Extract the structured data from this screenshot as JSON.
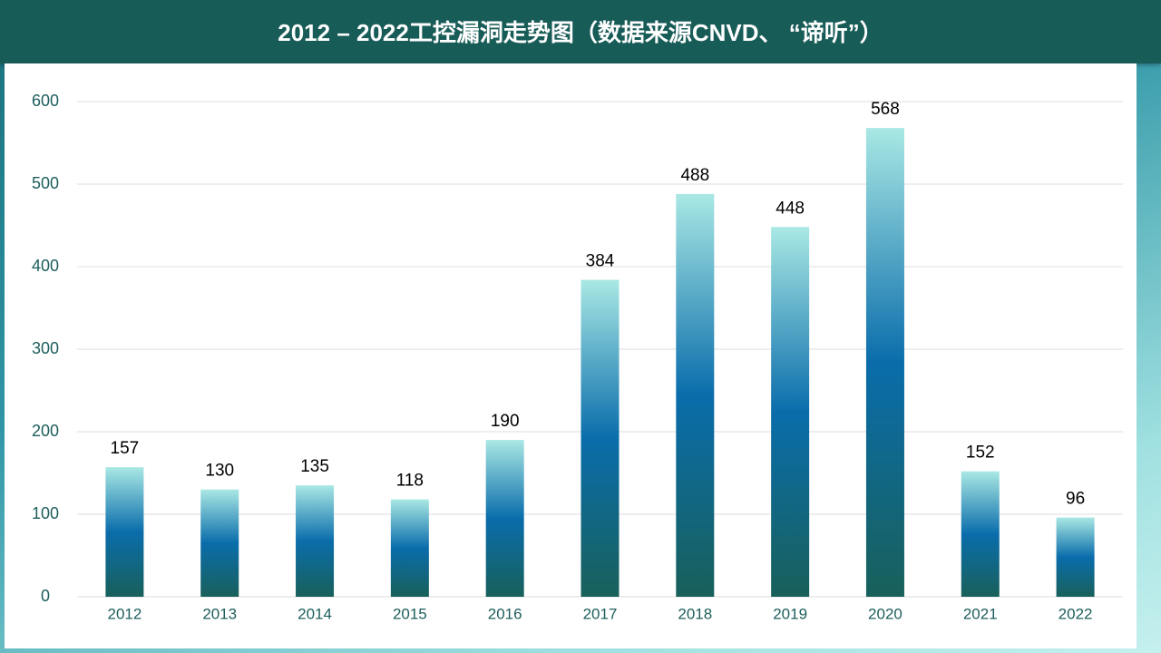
{
  "chart_data": {
    "type": "bar",
    "title": "2012 – 2022工控漏洞走势图（数据来源CNVD、 “谛听”）",
    "categories": [
      "2012",
      "2013",
      "2014",
      "2015",
      "2016",
      "2017",
      "2018",
      "2019",
      "2020",
      "2021",
      "2022"
    ],
    "values": [
      157,
      130,
      135,
      118,
      190,
      384,
      488,
      448,
      568,
      152,
      96
    ],
    "colors": [
      "#a9e8e4",
      "#0a6dab",
      "#18605a"
    ],
    "ylim": [
      0,
      600
    ],
    "yticks": [
      0,
      100,
      200,
      300,
      400,
      500,
      600
    ],
    "grid": true
  }
}
